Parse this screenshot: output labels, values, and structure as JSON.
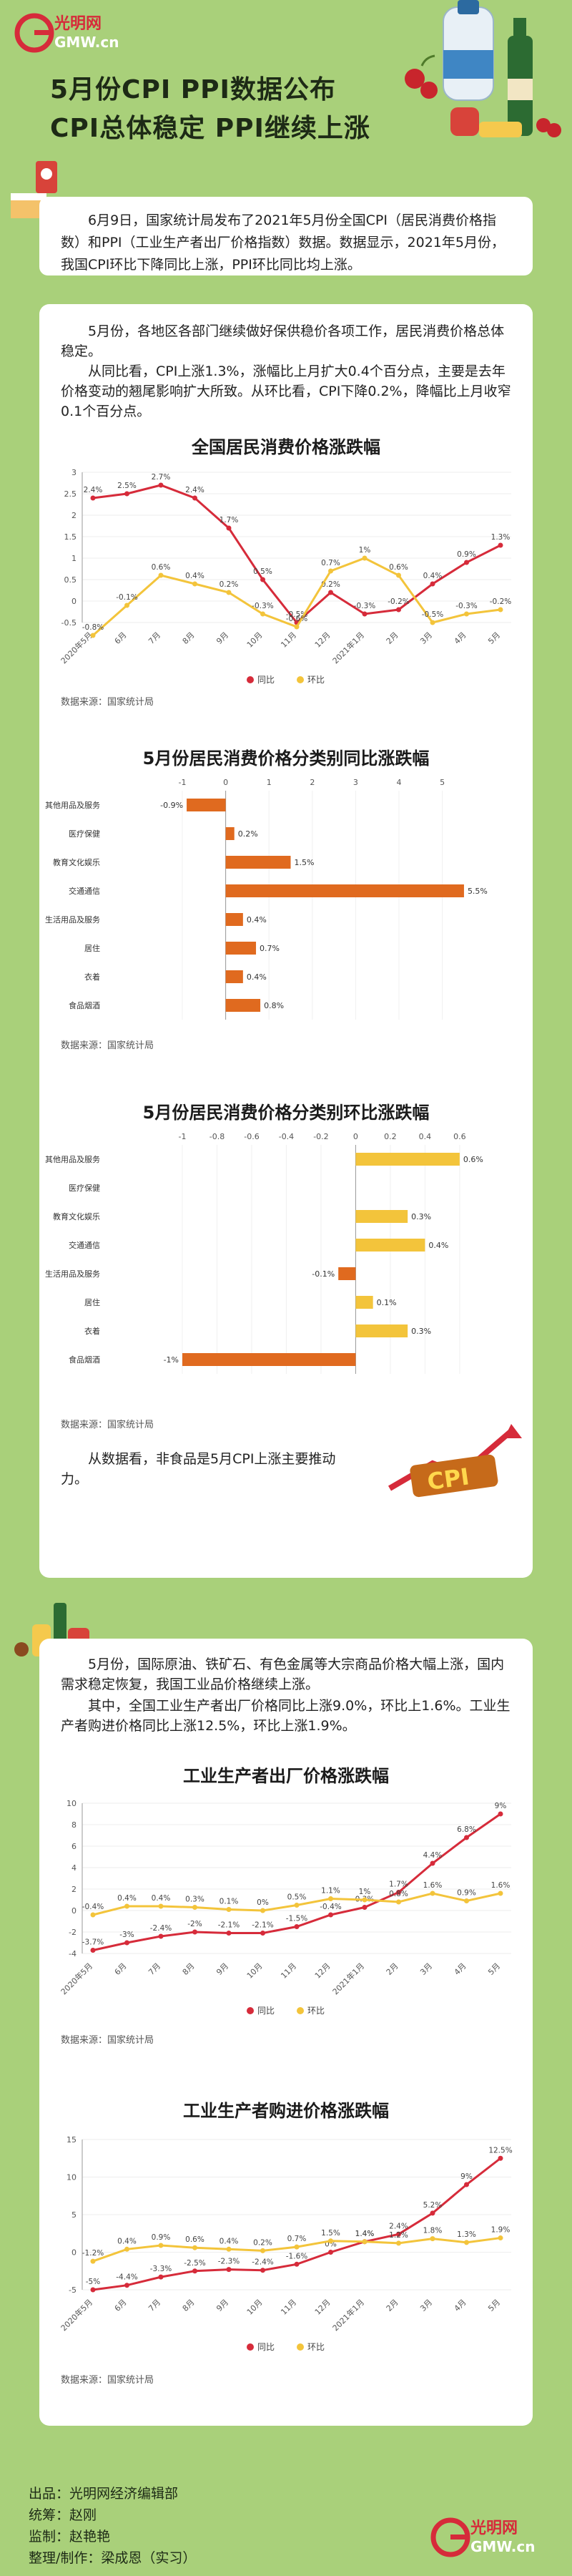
{
  "header": {
    "logo_text": "光明网",
    "logo_sub": "GMW.cn",
    "title_line1": "5月份CPI PPI数据公布",
    "title_line2": "CPI总体稳定 PPI继续上涨"
  },
  "intro_text": "6月9日，国家统计局发布了2021年5月份全国CPI（居民消费价格指数）和PPI（工业生产者出厂价格指数）数据。数据显示，2021年5月份，我国CPI环比下降同比上涨，PPI环比同比均上涨。",
  "section1": {
    "para1": "5月份，各地区各部门继续做好保供稳价各项工作，居民消费价格总体稳定。",
    "para2": "从同比看，CPI上涨1.3%，涨幅比上月扩大0.4个百分点，主要是去年价格变动的翘尾影响扩大所致。从环比看，CPI下降0.2%，降幅比上月收窄0.1个百分点。",
    "closing": "从数据看，非食品是5月CPI上涨主要推动力。"
  },
  "section2": {
    "para1": "5月份，国际原油、铁矿石、有色金属等大宗商品价格大幅上涨，国内需求稳定恢复，我国工业品价格继续上涨。",
    "para2": "其中，全国工业生产者出厂价格同比上涨9.0%，环比上1.6%。工业生产者购进价格同比上涨12.5%，环比上涨1.9%。"
  },
  "source_label": "数据来源：国家统计局",
  "cpi_badge": "CPI",
  "footer": {
    "line1": "出品：光明网经济编辑部",
    "line2": "统筹：赵刚",
    "line3": "监制：赵艳艳",
    "line4": "整理/制作：梁成恩（实习）"
  },
  "colors": {
    "red": "#d62b3a",
    "yellow": "#f3c43b",
    "orange": "#e06a1f",
    "bg": "#a9d07a"
  },
  "chart_data": [
    {
      "type": "line",
      "title": "全国居民消费价格涨跌幅",
      "categories": [
        "2020年5月",
        "6月",
        "7月",
        "8月",
        "9月",
        "10月",
        "11月",
        "12月",
        "2021年1月",
        "2月",
        "3月",
        "4月",
        "5月"
      ],
      "series": [
        {
          "name": "同比",
          "values": [
            2.4,
            2.5,
            2.7,
            2.4,
            1.7,
            0.5,
            -0.5,
            0.2,
            -0.3,
            -0.2,
            0.4,
            0.9,
            1.3
          ],
          "labels": [
            "2.4%",
            "2.5%",
            "2.7%",
            "2.4%",
            "1.7%",
            "0.5%",
            "-0.5%",
            "0.2%",
            "-0.3%",
            "-0.2%",
            "0.4%",
            "0.9%",
            "1.3%"
          ]
        },
        {
          "name": "环比",
          "values": [
            -0.8,
            -0.1,
            0.6,
            0.4,
            0.2,
            -0.3,
            -0.6,
            0.7,
            1.0,
            0.6,
            -0.5,
            -0.3,
            -0.2
          ],
          "labels": [
            "-0.8%",
            "-0.1%",
            "0.6%",
            "0.4%",
            "0.2%",
            "-0.3%",
            "-0.6%",
            "0.7%",
            "1%",
            "0.6%",
            "-0.5%",
            "-0.3%",
            "-0.2%"
          ]
        }
      ],
      "yticks": [
        "-0.5",
        "0",
        "0.5",
        "1",
        "1.5",
        "2",
        "2.5",
        "3"
      ],
      "ylim": [
        -0.5,
        3
      ]
    },
    {
      "type": "bar",
      "title": "5月份居民消费价格分类别同比涨跌幅",
      "categories": [
        "其他用品及服务",
        "医疗保健",
        "教育文化娱乐",
        "交通通信",
        "生活用品及服务",
        "居住",
        "衣着",
        "食品烟酒"
      ],
      "values": [
        -0.9,
        0.2,
        1.5,
        5.5,
        0.4,
        0.7,
        0.4,
        0.8
      ],
      "labels": [
        "-0.9%",
        "0.2%",
        "1.5%",
        "5.5%",
        "0.4%",
        "0.7%",
        "0.4%",
        "0.8%"
      ],
      "xticks": [
        "-1",
        "0",
        "1",
        "2",
        "3",
        "4",
        "5"
      ],
      "xlim": [
        -1,
        5.6
      ]
    },
    {
      "type": "bar",
      "title": "5月份居民消费价格分类别环比涨跌幅",
      "categories": [
        "其他用品及服务",
        "医疗保健",
        "教育文化娱乐",
        "交通通信",
        "生活用品及服务",
        "居住",
        "衣着",
        "食品烟酒"
      ],
      "values": [
        0.6,
        0,
        0.3,
        0.4,
        -0.1,
        0.1,
        0.3,
        -1
      ],
      "labels": [
        "0.6%",
        "",
        "0.3%",
        "0.4%",
        "-0.1%",
        "0.1%",
        "0.3%",
        "-1%"
      ],
      "xticks": [
        "-1",
        "-0.8",
        "-0.6",
        "-0.4",
        "-0.2",
        "0",
        "0.2",
        "0.4",
        "0.6"
      ],
      "xlim": [
        -1,
        0.65
      ]
    },
    {
      "type": "line",
      "title": "工业生产者出厂价格涨跌幅",
      "categories": [
        "2020年5月",
        "6月",
        "7月",
        "8月",
        "9月",
        "10月",
        "11月",
        "12月",
        "2021年1月",
        "2月",
        "3月",
        "4月",
        "5月"
      ],
      "series": [
        {
          "name": "同比",
          "values": [
            -3.7,
            -3.0,
            -2.4,
            -2.0,
            -2.1,
            -2.1,
            -1.5,
            -0.4,
            0.3,
            1.7,
            4.4,
            6.8,
            9.0
          ],
          "labels": [
            "-3.7%",
            "-3%",
            "-2.4%",
            "-2%",
            "-2.1%",
            "-2.1%",
            "-1.5%",
            "-0.4%",
            "0.3%",
            "1.7%",
            "4.4%",
            "6.8%",
            "9%"
          ]
        },
        {
          "name": "环比",
          "values": [
            -0.4,
            0.4,
            0.4,
            0.3,
            0.1,
            0,
            0.5,
            1.1,
            1.0,
            0.8,
            1.6,
            0.9,
            1.6
          ],
          "labels": [
            "-0.4%",
            "0.4%",
            "0.4%",
            "0.3%",
            "0.1%",
            "0%",
            "0.5%",
            "1.1%",
            "1%",
            "0.8%",
            "1.6%",
            "0.9%",
            "1.6%"
          ]
        }
      ],
      "yticks": [
        "-4",
        "-2",
        "0",
        "2",
        "4",
        "6",
        "8",
        "10"
      ],
      "ylim": [
        -4,
        10
      ]
    },
    {
      "type": "line",
      "title": "工业生产者购进价格涨跌幅",
      "categories": [
        "2020年5月",
        "6月",
        "7月",
        "8月",
        "9月",
        "10月",
        "11月",
        "12月",
        "2021年1月",
        "2月",
        "3月",
        "4月",
        "5月"
      ],
      "series": [
        {
          "name": "同比",
          "values": [
            -5,
            -4.4,
            -3.3,
            -2.5,
            -2.3,
            -2.4,
            -1.6,
            0,
            1.4,
            2.4,
            5.2,
            9,
            12.5
          ],
          "labels": [
            "-5%",
            "-4.4%",
            "-3.3%",
            "-2.5%",
            "-2.3%",
            "-2.4%",
            "-1.6%",
            "0%",
            "1.4%",
            "2.4%",
            "5.2%",
            "9%",
            "12.5%"
          ]
        },
        {
          "name": "环比",
          "values": [
            -1.2,
            0.4,
            0.9,
            0.6,
            0.4,
            0.2,
            0.7,
            1.5,
            1.4,
            1.2,
            1.8,
            1.3,
            1.9
          ],
          "labels": [
            "-1.2%",
            "0.4%",
            "0.9%",
            "0.6%",
            "0.4%",
            "0.2%",
            "0.7%",
            "1.5%",
            "1.4%",
            "1.2%",
            "1.8%",
            "1.3%",
            "1.9%"
          ]
        }
      ],
      "yticks": [
        "-5",
        "0",
        "5",
        "10",
        "15"
      ],
      "ylim": [
        -5,
        15
      ]
    }
  ]
}
